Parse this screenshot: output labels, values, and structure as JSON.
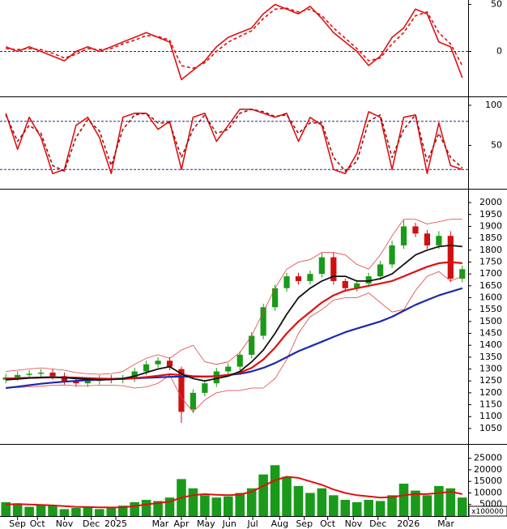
{
  "chart_data": [
    {
      "type": "line",
      "xlim": [
        -0.5,
        39.5
      ],
      "ylim": [
        -47,
        53
      ],
      "yticks": [
        0,
        50
      ],
      "ref_lines": [
        0
      ],
      "series": [
        {
          "color": "#e01010",
          "values": [
            5,
            0,
            5,
            0,
            -5,
            -10,
            0,
            5,
            0,
            5,
            10,
            15,
            20,
            15,
            10,
            -30,
            -20,
            -10,
            5,
            15,
            20,
            25,
            40,
            50,
            45,
            40,
            48,
            35,
            20,
            10,
            0,
            -15,
            -5,
            15,
            25,
            45,
            40,
            10,
            5,
            -28
          ]
        },
        {
          "color": "#e01010",
          "dashed": true,
          "values": [
            3,
            2,
            3,
            2,
            -2,
            -7,
            -3,
            3,
            2,
            3,
            8,
            12,
            17,
            16,
            12,
            -15,
            -18,
            -12,
            0,
            10,
            16,
            22,
            35,
            45,
            46,
            42,
            45,
            38,
            25,
            14,
            3,
            -10,
            -7,
            8,
            20,
            38,
            42,
            20,
            8,
            -15
          ]
        }
      ]
    },
    {
      "type": "line",
      "xlim": [
        -0.5,
        39.5
      ],
      "ylim": [
        -3,
        108
      ],
      "yticks": [
        50,
        100
      ],
      "ref_lines": [
        20,
        80
      ],
      "series": [
        {
          "color": "#e01010",
          "values": [
            90,
            45,
            85,
            60,
            15,
            20,
            75,
            85,
            60,
            15,
            85,
            90,
            90,
            70,
            80,
            20,
            85,
            90,
            55,
            75,
            95,
            95,
            90,
            85,
            90,
            55,
            85,
            75,
            20,
            15,
            40,
            92,
            85,
            20,
            85,
            88,
            15,
            78,
            25,
            20
          ]
        },
        {
          "color": "#a01010",
          "dashed": true,
          "values": [
            88,
            55,
            75,
            65,
            25,
            18,
            60,
            82,
            68,
            25,
            70,
            88,
            90,
            78,
            78,
            35,
            70,
            88,
            65,
            70,
            90,
            95,
            92,
            86,
            88,
            65,
            78,
            78,
            35,
            18,
            30,
            80,
            88,
            35,
            70,
            88,
            30,
            65,
            35,
            22
          ]
        }
      ]
    },
    {
      "type": "candlestick",
      "xlim": [
        -0.5,
        39.5
      ],
      "ylim": [
        985,
        2048
      ],
      "yticks": [
        1050,
        1100,
        1150,
        1200,
        1250,
        1300,
        1350,
        1400,
        1450,
        1500,
        1550,
        1600,
        1650,
        1700,
        1750,
        1800,
        1850,
        1900,
        1950,
        2000
      ],
      "up_color": "#1a9a1a",
      "down_color": "#d01010",
      "open": [
        1255,
        1265,
        1275,
        1280,
        1285,
        1270,
        1250,
        1240,
        1250,
        1260,
        1255,
        1260,
        1290,
        1320,
        1335,
        1300,
        1130,
        1200,
        1240,
        1290,
        1310,
        1360,
        1440,
        1560,
        1640,
        1690,
        1670,
        1700,
        1770,
        1670,
        1640,
        1660,
        1690,
        1740,
        1820,
        1900,
        1870,
        1820,
        1860,
        1680
      ],
      "high": [
        1280,
        1290,
        1295,
        1300,
        1300,
        1285,
        1265,
        1265,
        1275,
        1275,
        1275,
        1305,
        1335,
        1350,
        1350,
        1310,
        1215,
        1255,
        1305,
        1325,
        1375,
        1455,
        1575,
        1655,
        1705,
        1705,
        1715,
        1790,
        1790,
        1680,
        1675,
        1705,
        1755,
        1840,
        1925,
        1915,
        1885,
        1880,
        1880,
        1735
      ],
      "low": [
        1240,
        1250,
        1260,
        1265,
        1255,
        1235,
        1225,
        1225,
        1235,
        1240,
        1240,
        1245,
        1275,
        1305,
        1295,
        1073,
        1115,
        1185,
        1225,
        1275,
        1295,
        1345,
        1425,
        1545,
        1625,
        1655,
        1655,
        1685,
        1655,
        1625,
        1625,
        1645,
        1675,
        1725,
        1805,
        1855,
        1805,
        1805,
        1665,
        1665
      ],
      "close": [
        1265,
        1275,
        1280,
        1285,
        1270,
        1250,
        1240,
        1250,
        1260,
        1255,
        1260,
        1290,
        1320,
        1335,
        1310,
        1120,
        1200,
        1240,
        1290,
        1310,
        1360,
        1440,
        1560,
        1640,
        1690,
        1670,
        1700,
        1770,
        1670,
        1640,
        1660,
        1690,
        1740,
        1820,
        1900,
        1870,
        1820,
        1860,
        1680,
        1720
      ],
      "series": [
        {
          "color": "#e04040",
          "width": 0.8,
          "values": [
            1290,
            1295,
            1300,
            1305,
            1300,
            1295,
            1285,
            1280,
            1278,
            1280,
            1290,
            1320,
            1345,
            1360,
            1345,
            1380,
            1400,
            1330,
            1320,
            1330,
            1370,
            1440,
            1540,
            1640,
            1720,
            1750,
            1760,
            1790,
            1790,
            1780,
            1740,
            1720,
            1780,
            1860,
            1930,
            1930,
            1910,
            1920,
            1930,
            1930
          ]
        },
        {
          "color": "#e04040",
          "width": 0.8,
          "values": [
            1220,
            1222,
            1225,
            1228,
            1232,
            1233,
            1230,
            1230,
            1232,
            1232,
            1230,
            1220,
            1225,
            1240,
            1275,
            1180,
            1120,
            1170,
            1200,
            1210,
            1210,
            1220,
            1220,
            1260,
            1340,
            1450,
            1520,
            1550,
            1590,
            1600,
            1600,
            1620,
            1580,
            1540,
            1550,
            1630,
            1690,
            1710,
            1670,
            1690
          ]
        },
        {
          "color": "#1a2aaa",
          "width": 2.2,
          "values": [
            1220,
            1226,
            1232,
            1238,
            1243,
            1247,
            1250,
            1253,
            1255,
            1257,
            1259,
            1261,
            1263,
            1265,
            1267,
            1268,
            1268,
            1268,
            1270,
            1275,
            1280,
            1290,
            1305,
            1325,
            1350,
            1375,
            1395,
            1415,
            1435,
            1455,
            1470,
            1485,
            1500,
            1520,
            1545,
            1570,
            1590,
            1610,
            1625,
            1640
          ]
        },
        {
          "color": "#e01010",
          "width": 2.2,
          "values": [
            1260,
            1262,
            1263,
            1264,
            1265,
            1265,
            1264,
            1262,
            1260,
            1259,
            1260,
            1262,
            1266,
            1272,
            1278,
            1275,
            1270,
            1268,
            1270,
            1275,
            1285,
            1305,
            1340,
            1390,
            1450,
            1500,
            1540,
            1580,
            1610,
            1630,
            1640,
            1650,
            1660,
            1670,
            1690,
            1710,
            1730,
            1745,
            1750,
            1745
          ]
        },
        {
          "color": "#111111",
          "width": 1.8,
          "values": [
            1255,
            1258,
            1262,
            1265,
            1266,
            1264,
            1260,
            1257,
            1255,
            1256,
            1260,
            1270,
            1285,
            1300,
            1310,
            1280,
            1260,
            1250,
            1260,
            1270,
            1290,
            1330,
            1380,
            1450,
            1530,
            1600,
            1640,
            1670,
            1690,
            1690,
            1670,
            1670,
            1680,
            1700,
            1740,
            1780,
            1800,
            1815,
            1820,
            1815
          ]
        }
      ]
    },
    {
      "type": "bar",
      "xlim": [
        -0.5,
        39.5
      ],
      "ylim": [
        0,
        30500
      ],
      "yticks": [
        5000,
        10000,
        15000,
        20000,
        25000
      ],
      "unit_label": "x100000",
      "color": "#1a9a1a",
      "values": [
        6000,
        5500,
        4000,
        5000,
        4500,
        3000,
        3500,
        4000,
        3000,
        3500,
        4500,
        6000,
        7000,
        6500,
        8000,
        16000,
        12000,
        9000,
        8000,
        8500,
        10000,
        12000,
        18000,
        22000,
        17000,
        13000,
        10000,
        12000,
        9000,
        7000,
        6000,
        7000,
        6500,
        9000,
        14000,
        11000,
        9000,
        13000,
        12000,
        8000
      ],
      "series": [
        {
          "color": "#e01010",
          "width": 2,
          "values": [
            5000,
            5200,
            5000,
            4800,
            4600,
            4300,
            4000,
            3900,
            3800,
            3700,
            3800,
            4300,
            5000,
            5600,
            6200,
            8000,
            9000,
            9500,
            9200,
            9000,
            9300,
            10500,
            13000,
            15500,
            17000,
            16500,
            15000,
            13500,
            11500,
            10000,
            9000,
            8500,
            8000,
            8200,
            9000,
            9500,
            9500,
            10000,
            10500,
            9500
          ]
        }
      ],
      "xticks": [
        {
          "value": 1,
          "label": "Sep"
        },
        {
          "value": 2.7,
          "label": "Oct"
        },
        {
          "value": 5,
          "label": "Nov"
        },
        {
          "value": 7.3,
          "label": "Dec"
        },
        {
          "value": 9.4,
          "label": "2025"
        },
        {
          "value": 13.2,
          "label": "Mar"
        },
        {
          "value": 15,
          "label": "Apr"
        },
        {
          "value": 17.1,
          "label": "May"
        },
        {
          "value": 19.1,
          "label": "Jun"
        },
        {
          "value": 21.1,
          "label": "Jul"
        },
        {
          "value": 23.4,
          "label": "Aug"
        },
        {
          "value": 25.5,
          "label": "Sep"
        },
        {
          "value": 27.5,
          "label": "Oct"
        },
        {
          "value": 29.7,
          "label": "Nov"
        },
        {
          "value": 31.8,
          "label": "Dec"
        },
        {
          "value": 34.4,
          "label": "2026"
        },
        {
          "value": 37.6,
          "label": "Mar"
        }
      ]
    }
  ]
}
